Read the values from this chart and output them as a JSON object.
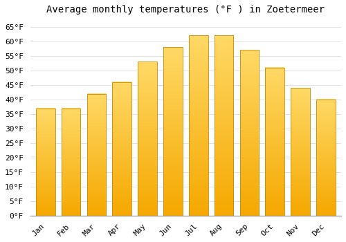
{
  "title": "Average monthly temperatures (°F ) in Zoetermeer",
  "months": [
    "Jan",
    "Feb",
    "Mar",
    "Apr",
    "May",
    "Jun",
    "Jul",
    "Aug",
    "Sep",
    "Oct",
    "Nov",
    "Dec"
  ],
  "values": [
    37,
    37,
    42,
    46,
    53,
    58,
    62,
    62,
    57,
    51,
    44,
    40
  ],
  "bar_color_bottom": "#F5A800",
  "bar_color_top": "#FFD966",
  "bar_edge_color": "#C8880A",
  "background_color": "#FFFFFF",
  "grid_color": "#DDDDDD",
  "ylim": [
    0,
    68
  ],
  "yticks": [
    0,
    5,
    10,
    15,
    20,
    25,
    30,
    35,
    40,
    45,
    50,
    55,
    60,
    65
  ],
  "title_fontsize": 10,
  "tick_fontsize": 8,
  "font_family": "monospace",
  "bar_width": 0.75
}
